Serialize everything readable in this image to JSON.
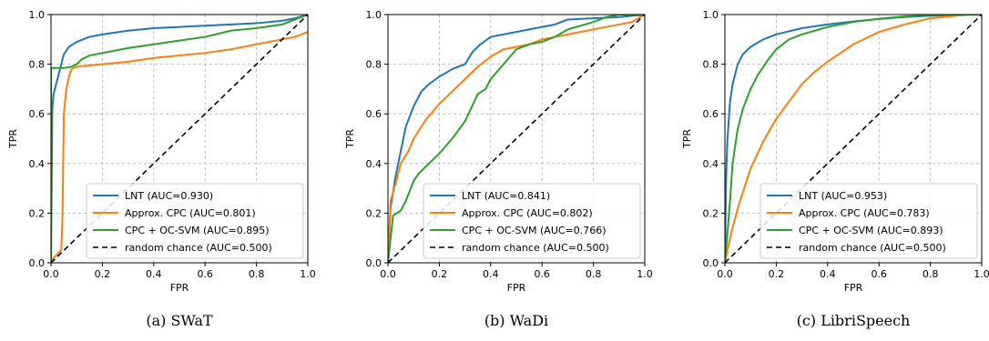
{
  "chart_data": [
    {
      "type": "line",
      "caption": "(a) SWaT",
      "xlabel": "FPR",
      "ylabel": "TPR",
      "xlim": [
        0,
        1
      ],
      "ylim": [
        0,
        1
      ],
      "xticks": [
        "0.0",
        "0.2",
        "0.4",
        "0.6",
        "0.8",
        "1.0"
      ],
      "yticks": [
        "0.0",
        "0.2",
        "0.4",
        "0.6",
        "0.8",
        "1.0"
      ],
      "grid": true,
      "legend_position": "lower-right",
      "series": [
        {
          "name": "LNT (AUC=0.930)",
          "color": "#1f77b4",
          "style": "solid",
          "x": [
            0,
            0.005,
            0.01,
            0.02,
            0.03,
            0.04,
            0.05,
            0.07,
            0.1,
            0.15,
            0.2,
            0.3,
            0.4,
            0.5,
            0.6,
            0.7,
            0.8,
            0.9,
            0.95,
            1.0
          ],
          "y": [
            0,
            0.62,
            0.68,
            0.72,
            0.76,
            0.8,
            0.84,
            0.87,
            0.89,
            0.91,
            0.92,
            0.935,
            0.945,
            0.95,
            0.955,
            0.96,
            0.965,
            0.975,
            0.985,
            1.0
          ]
        },
        {
          "name": "Approx. CPC (AUC=0.801)",
          "color": "#ff7f0e",
          "style": "solid",
          "x": [
            0,
            0.01,
            0.02,
            0.03,
            0.04,
            0.045,
            0.05,
            0.06,
            0.07,
            0.08,
            0.1,
            0.15,
            0.2,
            0.3,
            0.4,
            0.5,
            0.6,
            0.7,
            0.8,
            0.9,
            0.95,
            1.0
          ],
          "y": [
            0,
            0.02,
            0.03,
            0.04,
            0.05,
            0.2,
            0.6,
            0.7,
            0.75,
            0.78,
            0.79,
            0.795,
            0.8,
            0.81,
            0.825,
            0.835,
            0.845,
            0.86,
            0.88,
            0.9,
            0.91,
            0.93
          ]
        },
        {
          "name": "CPC + OC-SVM (AUC=0.895)",
          "color": "#2ca02c",
          "style": "solid",
          "x": [
            0,
            0.0,
            0.005,
            0.05,
            0.08,
            0.1,
            0.12,
            0.15,
            0.2,
            0.25,
            0.3,
            0.4,
            0.5,
            0.6,
            0.7,
            0.8,
            0.9,
            0.95,
            1.0
          ],
          "y": [
            0,
            0.78,
            0.785,
            0.785,
            0.79,
            0.8,
            0.82,
            0.835,
            0.845,
            0.855,
            0.865,
            0.88,
            0.895,
            0.91,
            0.935,
            0.945,
            0.96,
            0.98,
            1.0
          ]
        },
        {
          "name": "random chance (AUC=0.500)",
          "color": "#000000",
          "style": "dashed",
          "x": [
            0,
            1
          ],
          "y": [
            0,
            1
          ]
        }
      ]
    },
    {
      "type": "line",
      "caption": "(b) WaDi",
      "xlabel": "FPR",
      "ylabel": "TPR",
      "xlim": [
        0,
        1
      ],
      "ylim": [
        0,
        1
      ],
      "xticks": [
        "0.0",
        "0.2",
        "0.4",
        "0.6",
        "0.8",
        "1.0"
      ],
      "yticks": [
        "0.0",
        "0.2",
        "0.4",
        "0.6",
        "0.8",
        "1.0"
      ],
      "grid": true,
      "legend_position": "lower-right",
      "series": [
        {
          "name": "LNT (AUC=0.841)",
          "color": "#1f77b4",
          "style": "solid",
          "x": [
            0,
            0.01,
            0.03,
            0.05,
            0.07,
            0.1,
            0.13,
            0.16,
            0.2,
            0.25,
            0.3,
            0.33,
            0.36,
            0.4,
            0.5,
            0.6,
            0.65,
            0.7,
            0.8,
            0.9,
            1.0
          ],
          "y": [
            0,
            0.22,
            0.35,
            0.45,
            0.55,
            0.63,
            0.69,
            0.72,
            0.75,
            0.78,
            0.8,
            0.85,
            0.88,
            0.91,
            0.93,
            0.95,
            0.96,
            0.98,
            0.985,
            0.99,
            1.0
          ]
        },
        {
          "name": "Approx. CPC (AUC=0.802)",
          "color": "#ff7f0e",
          "style": "solid",
          "x": [
            0,
            0.01,
            0.03,
            0.05,
            0.08,
            0.1,
            0.15,
            0.2,
            0.25,
            0.3,
            0.35,
            0.4,
            0.45,
            0.5,
            0.55,
            0.6,
            0.7,
            0.8,
            0.9,
            0.95,
            1.0
          ],
          "y": [
            0,
            0.25,
            0.32,
            0.4,
            0.45,
            0.5,
            0.58,
            0.64,
            0.69,
            0.74,
            0.79,
            0.83,
            0.86,
            0.87,
            0.88,
            0.9,
            0.92,
            0.94,
            0.96,
            0.97,
            1.0
          ]
        },
        {
          "name": "CPC + OC-SVM (AUC=0.766)",
          "color": "#2ca02c",
          "style": "solid",
          "x": [
            0,
            0.02,
            0.05,
            0.07,
            0.1,
            0.12,
            0.15,
            0.2,
            0.25,
            0.3,
            0.35,
            0.38,
            0.4,
            0.45,
            0.5,
            0.55,
            0.6,
            0.65,
            0.7,
            0.8,
            0.85,
            0.9,
            1.0
          ],
          "y": [
            0,
            0.19,
            0.21,
            0.25,
            0.33,
            0.36,
            0.39,
            0.44,
            0.5,
            0.57,
            0.68,
            0.7,
            0.74,
            0.8,
            0.86,
            0.88,
            0.89,
            0.91,
            0.94,
            0.97,
            0.99,
            1.0,
            1.0
          ]
        },
        {
          "name": "random chance (AUC=0.500)",
          "color": "#000000",
          "style": "dashed",
          "x": [
            0,
            1
          ],
          "y": [
            0,
            1
          ]
        }
      ]
    },
    {
      "type": "line",
      "caption": "(c) LibriSpeech",
      "xlabel": "FPR",
      "ylabel": "TPR",
      "xlim": [
        0,
        1
      ],
      "ylim": [
        0,
        1
      ],
      "xticks": [
        "0.0",
        "0.2",
        "0.4",
        "0.6",
        "0.8",
        "1.0"
      ],
      "yticks": [
        "0.0",
        "0.2",
        "0.4",
        "0.6",
        "0.8",
        "1.0"
      ],
      "grid": true,
      "legend_position": "lower-right",
      "series": [
        {
          "name": "LNT (AUC=0.953)",
          "color": "#1f77b4",
          "style": "solid",
          "x": [
            0,
            0.005,
            0.01,
            0.02,
            0.03,
            0.05,
            0.07,
            0.1,
            0.15,
            0.2,
            0.3,
            0.4,
            0.5,
            0.6,
            0.7,
            0.8,
            0.9,
            1.0
          ],
          "y": [
            0,
            0.35,
            0.5,
            0.65,
            0.72,
            0.8,
            0.84,
            0.87,
            0.9,
            0.92,
            0.945,
            0.96,
            0.972,
            0.982,
            0.99,
            0.995,
            0.998,
            1.0
          ]
        },
        {
          "name": "Approx. CPC (AUC=0.783)",
          "color": "#ff7f0e",
          "style": "solid",
          "x": [
            0,
            0.02,
            0.05,
            0.1,
            0.15,
            0.2,
            0.25,
            0.3,
            0.35,
            0.4,
            0.5,
            0.6,
            0.7,
            0.8,
            0.9,
            0.95,
            1.0
          ],
          "y": [
            0,
            0.1,
            0.22,
            0.38,
            0.49,
            0.58,
            0.65,
            0.72,
            0.77,
            0.81,
            0.88,
            0.93,
            0.96,
            0.985,
            0.995,
            1.0,
            1.0
          ]
        },
        {
          "name": "CPC + OC-SVM (AUC=0.893)",
          "color": "#2ca02c",
          "style": "solid",
          "x": [
            0,
            0.01,
            0.02,
            0.03,
            0.05,
            0.07,
            0.1,
            0.13,
            0.17,
            0.2,
            0.25,
            0.3,
            0.4,
            0.5,
            0.6,
            0.7,
            0.8,
            0.9,
            1.0
          ],
          "y": [
            0,
            0.12,
            0.25,
            0.4,
            0.54,
            0.62,
            0.7,
            0.76,
            0.82,
            0.86,
            0.9,
            0.92,
            0.95,
            0.97,
            0.983,
            0.992,
            0.997,
            1.0,
            1.0
          ]
        },
        {
          "name": "random chance (AUC=0.500)",
          "color": "#000000",
          "style": "dashed",
          "x": [
            0,
            1
          ],
          "y": [
            0,
            1
          ]
        }
      ]
    }
  ]
}
